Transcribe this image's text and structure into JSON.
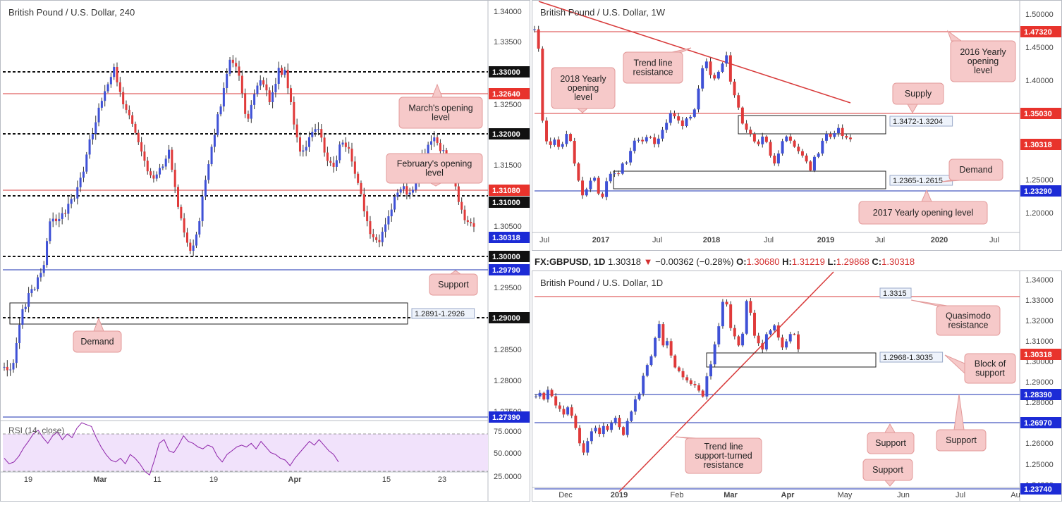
{
  "colors": {
    "bull": "#3f51d6",
    "bear": "#e03a3a",
    "resistance_line": "#d83b3b",
    "support_line": "#1a2fb0",
    "callout_bg": "#f6c9c9",
    "callout_border": "#e39a9a",
    "price_tag_red": "#e8332c",
    "price_tag_blue": "#1c2bd6",
    "rsi_line": "#8e24aa",
    "rsi_band": "#f1e2fb"
  },
  "chart_data": [
    {
      "id": "h4",
      "type": "candlestick",
      "title": "British Pound / U.S. Dollar, 240",
      "ylim": [
        1.2705,
        1.3415
      ],
      "y_ticks": [
        "1.34000",
        "1.33500",
        "1.32500",
        "1.32000",
        "1.31500",
        "1.30500",
        "1.30000",
        "1.29500",
        "1.28500",
        "1.28000",
        "1.27500"
      ],
      "x_ticks": [
        "19",
        "Mar",
        "11",
        "19",
        "Apr",
        "15",
        "23"
      ],
      "price_tags": [
        {
          "label": "1.33000",
          "style": "black"
        },
        {
          "label": "1.32640",
          "style": "red"
        },
        {
          "label": "1.32000",
          "style": "black"
        },
        {
          "label": "1.31080",
          "style": "red"
        },
        {
          "label": "1.31000",
          "style": "black"
        },
        {
          "label": "1.30318",
          "style": "blue"
        },
        {
          "label": "1.30000",
          "style": "black"
        },
        {
          "label": "1.29790",
          "style": "blue"
        },
        {
          "label": "1.29000",
          "style": "black"
        },
        {
          "label": "1.27390",
          "style": "blue"
        }
      ],
      "levels": [
        {
          "value": 1.33,
          "kind": "dashed"
        },
        {
          "value": 1.3264,
          "kind": "red"
        },
        {
          "value": 1.32,
          "kind": "dashed"
        },
        {
          "value": 1.3108,
          "kind": "red"
        },
        {
          "value": 1.31,
          "kind": "dashed"
        },
        {
          "value": 1.3,
          "kind": "dashed"
        },
        {
          "value": 1.2979,
          "kind": "blue"
        },
        {
          "value": 1.29,
          "kind": "dashed"
        },
        {
          "value": 1.2739,
          "kind": "blue"
        }
      ],
      "zones": [
        {
          "label": "1.2891-1.2926",
          "low": 1.2891,
          "high": 1.2926
        }
      ],
      "annotations": [
        {
          "text": "March's opening\nlevel"
        },
        {
          "text": "February's opening\nlevel"
        },
        {
          "text": "Support"
        },
        {
          "text": "Demand"
        }
      ],
      "rsi": {
        "label": "RSI (14, close)",
        "ticks": [
          "75.0000",
          "50.0000",
          "25.0000"
        ],
        "band": [
          30,
          70
        ],
        "values": [
          44,
          38,
          40,
          46,
          55,
          62,
          70,
          74,
          66,
          60,
          68,
          72,
          64,
          70,
          66,
          76,
          82,
          80,
          78,
          66,
          56,
          48,
          42,
          40,
          44,
          38,
          48,
          44,
          38,
          30,
          26,
          42,
          60,
          64,
          52,
          50,
          58,
          68,
          62,
          60,
          56,
          54,
          58,
          56,
          46,
          40,
          48,
          52,
          56,
          58,
          56,
          60,
          54,
          62,
          56,
          50,
          48,
          44,
          42,
          36,
          44,
          50,
          56,
          62,
          58,
          64,
          58,
          52,
          48,
          40
        ]
      },
      "candles": [
        1.279,
        1.278,
        1.287,
        1.291,
        1.293,
        1.296,
        1.305,
        1.304,
        1.306,
        1.308,
        1.312,
        1.318,
        1.323,
        1.327,
        1.33,
        1.325,
        1.322,
        1.318,
        1.314,
        1.311,
        1.313,
        1.316,
        1.308,
        1.302,
        1.2985,
        1.305,
        1.313,
        1.32,
        1.326,
        1.332,
        1.329,
        1.32,
        1.326,
        1.328,
        1.324,
        1.33,
        1.329,
        1.321,
        1.315,
        1.318,
        1.321,
        1.315,
        1.313,
        1.317,
        1.316,
        1.311,
        1.306,
        1.301,
        1.3,
        1.305,
        1.308,
        1.31,
        1.308,
        1.313,
        1.317,
        1.318,
        1.316,
        1.314,
        1.308,
        1.304,
        1.3031
      ]
    },
    {
      "id": "w1",
      "type": "candlestick",
      "title": "British Pound / U.S. Dollar, 1W",
      "ylim": [
        1.165,
        1.51
      ],
      "y_ticks": [
        "1.50000",
        "1.45000",
        "1.40000",
        "1.35000",
        "1.30000",
        "1.25000",
        "1.20000"
      ],
      "x_ticks": [
        "Jul",
        "2017",
        "Jul",
        "2018",
        "Jul",
        "2019",
        "Jul",
        "2020",
        "Jul"
      ],
      "price_tags": [
        {
          "label": "1.47320",
          "style": "red"
        },
        {
          "label": "1.35030",
          "style": "red"
        },
        {
          "label": "1.30318",
          "style": "red"
        },
        {
          "label": "1.23290",
          "style": "blue"
        }
      ],
      "levels": [
        {
          "value": 1.4732,
          "kind": "red"
        },
        {
          "value": 1.3503,
          "kind": "red"
        },
        {
          "value": 1.2329,
          "kind": "blue"
        }
      ],
      "zones": [
        {
          "label": "1.3472-1.3204",
          "low": 1.3204,
          "high": 1.3472
        },
        {
          "label": "1.2365-1.2615",
          "low": 1.2365,
          "high": 1.2615
        }
      ],
      "annotations": [
        {
          "text": "Trend line\nresistance"
        },
        {
          "text": "2018 Yearly\nopening\nlevel"
        },
        {
          "text": "2016 Yearly\nopening\nlevel"
        },
        {
          "text": "Supply"
        },
        {
          "text": "Demand"
        },
        {
          "text": "2017 Yearly opening level"
        }
      ],
      "candles": [
        1.468,
        1.44,
        1.33,
        1.3,
        1.295,
        1.305,
        1.29,
        1.3,
        1.31,
        1.3,
        1.27,
        1.24,
        1.22,
        1.23,
        1.24,
        1.245,
        1.225,
        1.22,
        1.24,
        1.25,
        1.255,
        1.25,
        1.265,
        1.27,
        1.285,
        1.3,
        1.305,
        1.3,
        1.305,
        1.31,
        1.3,
        1.305,
        1.32,
        1.33,
        1.345,
        1.34,
        1.33,
        1.325,
        1.335,
        1.34,
        1.35,
        1.38,
        1.41,
        1.42,
        1.4,
        1.395,
        1.405,
        1.42,
        1.43,
        1.39,
        1.37,
        1.35,
        1.33,
        1.32,
        1.31,
        1.3,
        1.295,
        1.31,
        1.3,
        1.28,
        1.27,
        1.285,
        1.3,
        1.31,
        1.305,
        1.29,
        1.285,
        1.28,
        1.27,
        1.26,
        1.275,
        1.285,
        1.3,
        1.31,
        1.305,
        1.315,
        1.32,
        1.31,
        1.305,
        1.303
      ]
    },
    {
      "id": "d1",
      "type": "candlestick",
      "title": "British Pound / U.S. Dollar, 1D",
      "symbol": "FX:GBPUSD, 1D",
      "ohlc": {
        "last": "1.30318",
        "change": "−0.00362 (−0.28%)",
        "O": "1.30680",
        "H": "1.31219",
        "L": "1.29868",
        "C": "1.30318"
      },
      "ylim": [
        1.2355,
        1.342
      ],
      "y_ticks": [
        "1.34000",
        "1.33000",
        "1.32000",
        "1.31000",
        "1.30000",
        "1.29000",
        "1.28000",
        "1.27000",
        "1.26000",
        "1.25000",
        "1.24000"
      ],
      "x_ticks": [
        "Dec",
        "2019",
        "Feb",
        "Mar",
        "Apr",
        "May",
        "Jun",
        "Jul",
        "Au"
      ],
      "price_tags": [
        {
          "label": "1.30318",
          "style": "red"
        },
        {
          "label": "1.28390",
          "style": "blue"
        },
        {
          "label": "1.26970",
          "style": "blue"
        },
        {
          "label": "1.23740",
          "style": "blue"
        }
      ],
      "levels": [
        {
          "value": 1.3315,
          "kind": "red"
        },
        {
          "value": 1.2839,
          "kind": "blue"
        },
        {
          "value": 1.2697,
          "kind": "blue"
        },
        {
          "value": 1.2374,
          "kind": "blue"
        }
      ],
      "zones": [
        {
          "label": "1.2968-1.3035",
          "low": 1.2968,
          "high": 1.3035
        }
      ],
      "value_labels": [
        "1.3315"
      ],
      "annotations": [
        {
          "text": "Quasimodo\nresistance"
        },
        {
          "text": "Block of\nsupport"
        },
        {
          "text": "Support"
        },
        {
          "text": "Support"
        },
        {
          "text": "Support"
        },
        {
          "text": "Trend line\nsupport-turned\nresistance"
        }
      ],
      "candles": [
        1.28,
        1.282,
        1.278,
        1.283,
        1.28,
        1.276,
        1.273,
        1.272,
        1.274,
        1.27,
        1.265,
        1.256,
        1.252,
        1.258,
        1.262,
        1.264,
        1.262,
        1.266,
        1.263,
        1.266,
        1.27,
        1.264,
        1.26,
        1.268,
        1.272,
        1.278,
        1.282,
        1.29,
        1.295,
        1.301,
        1.31,
        1.316,
        1.306,
        1.308,
        1.301,
        1.295,
        1.292,
        1.29,
        1.288,
        1.287,
        1.286,
        1.283,
        1.28,
        1.29,
        1.296,
        1.306,
        1.315,
        1.328,
        1.326,
        1.314,
        1.31,
        1.305,
        1.312,
        1.328,
        1.321,
        1.31,
        1.306,
        1.304,
        1.311,
        1.313,
        1.316,
        1.31,
        1.304,
        1.308,
        1.312,
        1.31,
        1.3031
      ]
    }
  ]
}
